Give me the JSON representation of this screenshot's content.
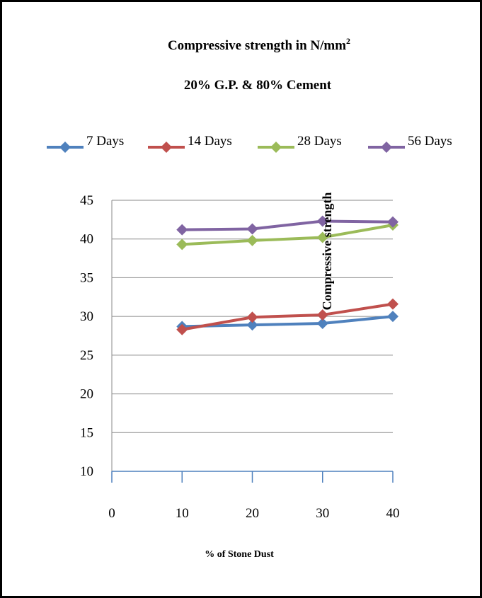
{
  "chart_data": {
    "type": "line",
    "title": "Compressive strength in N/mm",
    "title_superscript": "2",
    "subtitle": "20% G.P. & 80% Cement",
    "xlabel": "% of Stone Dust",
    "ylabel": "Compressive strength",
    "x_ticks": [
      "0",
      "10",
      "20",
      "30",
      "40"
    ],
    "y_ticks": [
      "10",
      "15",
      "20",
      "25",
      "30",
      "35",
      "40",
      "45"
    ],
    "xlim": [
      0,
      40
    ],
    "ylim": [
      10,
      45
    ],
    "legend_position": "top",
    "x": [
      10,
      20,
      30,
      40
    ],
    "series": [
      {
        "name": "7 Days",
        "color": "#4F81BD",
        "values": [
          28.7,
          28.9,
          29.1,
          30.0
        ]
      },
      {
        "name": "14 Days",
        "color": "#C0504D",
        "values": [
          28.3,
          29.9,
          30.2,
          31.6
        ]
      },
      {
        "name": "28 Days",
        "color": "#9BBB59",
        "values": [
          39.3,
          39.8,
          40.2,
          41.8
        ]
      },
      {
        "name": "56 Days",
        "color": "#8064A2",
        "values": [
          41.2,
          41.3,
          42.3,
          42.2
        ]
      }
    ]
  }
}
